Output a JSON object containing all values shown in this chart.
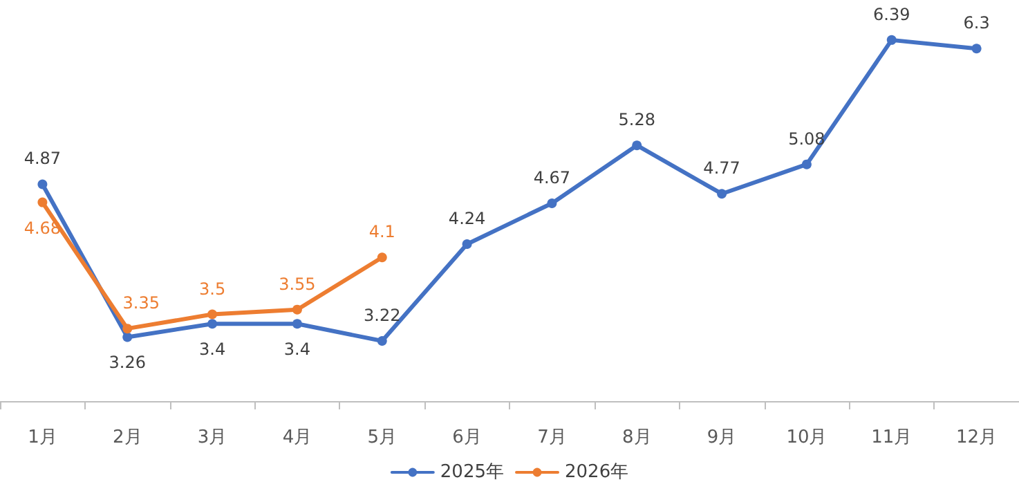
{
  "chart_data": {
    "type": "line",
    "categories": [
      "1月",
      "2月",
      "3月",
      "4月",
      "5月",
      "6月",
      "7月",
      "8月",
      "9月",
      "10月",
      "11月",
      "12月"
    ],
    "series": [
      {
        "name": "2025年",
        "color": "#4472c4",
        "values": [
          4.87,
          3.26,
          3.4,
          3.4,
          3.22,
          4.24,
          4.67,
          5.28,
          4.77,
          5.08,
          6.39,
          6.3
        ]
      },
      {
        "name": "2026年",
        "color": "#ed7d31",
        "values": [
          4.68,
          3.35,
          3.5,
          3.55,
          4.1,
          null,
          null,
          null,
          null,
          null,
          null,
          null
        ]
      }
    ],
    "tick_labels": "x",
    "data_labels": true,
    "legend": "bottom",
    "grid": false,
    "marker": "circle",
    "line_style": "solid"
  }
}
